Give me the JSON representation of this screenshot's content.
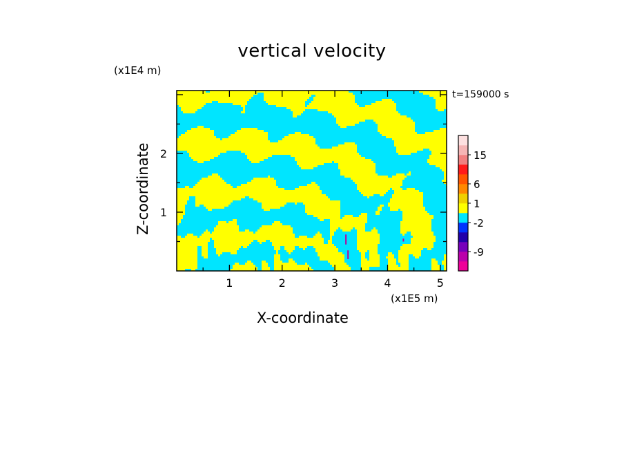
{
  "chart_data": {
    "type": "heatmap",
    "title": "vertical velocity",
    "xlabel": "X-coordinate",
    "ylabel": "Z-coordinate",
    "x_unit": "(x1E5 m)",
    "z_unit": "(x1E4 m)",
    "time_label": "t=159000 s",
    "xlim": [
      0,
      5.12
    ],
    "zlim": [
      0,
      3.07
    ],
    "x_ticks": [
      "1",
      "2",
      "3",
      "4",
      "5"
    ],
    "z_ticks": [
      "1",
      "2"
    ],
    "colorbar": {
      "tick_labels": [
        "15",
        "6",
        "1",
        "-2",
        "-9"
      ],
      "levels": [
        {
          "color": "#ee0099"
        },
        {
          "color": "#bb00aa"
        },
        {
          "color": "#7700bb"
        },
        {
          "color": "#2200aa"
        },
        {
          "color": "#0033ff"
        },
        {
          "color": "#00e5ff"
        },
        {
          "color": "#ffff00"
        },
        {
          "color": "#f0d000"
        },
        {
          "color": "#ff8800"
        },
        {
          "color": "#ff5500"
        },
        {
          "color": "#ff1a1a"
        },
        {
          "color": "#f08080"
        },
        {
          "color": "#f5b5b5"
        },
        {
          "color": "#fde0e0"
        }
      ]
    },
    "field_colors": {
      "positive": "#ffff00",
      "negative": "#00e5ff",
      "strong_updraft": "#bb0099"
    }
  }
}
